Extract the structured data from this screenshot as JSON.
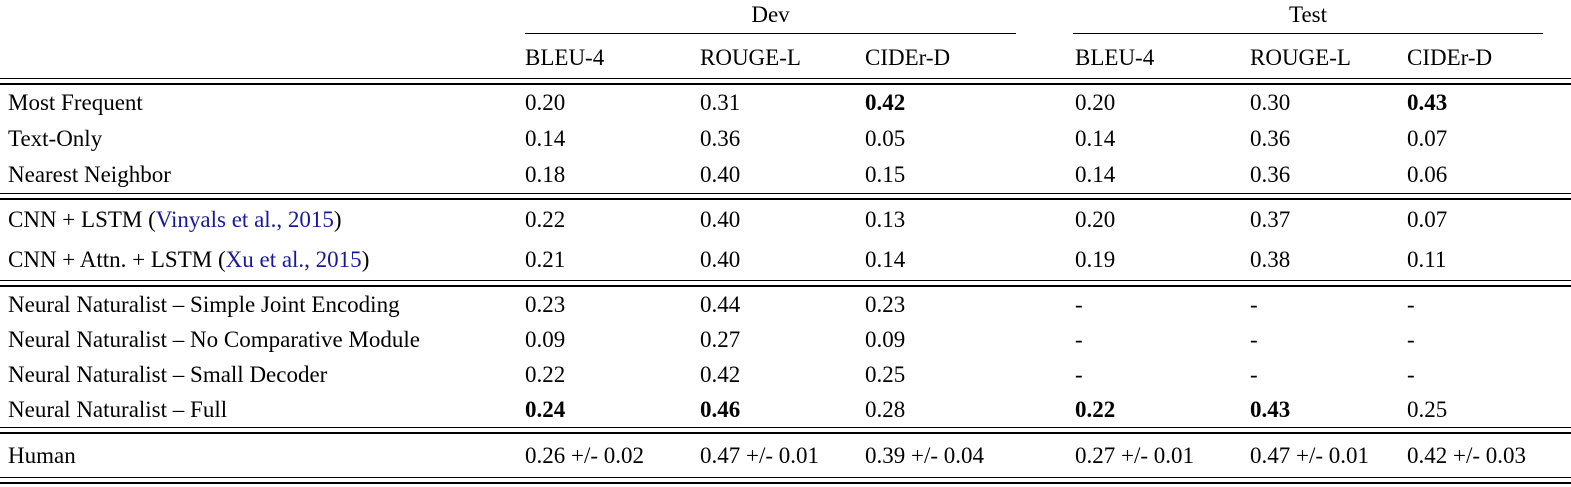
{
  "table": {
    "link_color": "#18189a",
    "groups": [
      {
        "label": "Dev"
      },
      {
        "label": "Test"
      }
    ],
    "metric_headers": [
      "BLEU-4",
      "ROUGE-L",
      "CIDEr-D",
      "BLEU-4",
      "ROUGE-L",
      "CIDEr-D"
    ],
    "sections": [
      {
        "name": "baselines",
        "rows": [
          {
            "label_parts": [
              {
                "text": "Most Frequent",
                "link": false
              }
            ],
            "values": [
              {
                "text": "0.20",
                "bold": false
              },
              {
                "text": "0.31",
                "bold": false
              },
              {
                "text": "0.42",
                "bold": true
              },
              {
                "text": "0.20",
                "bold": false
              },
              {
                "text": "0.30",
                "bold": false
              },
              {
                "text": "0.43",
                "bold": true
              }
            ]
          },
          {
            "label_parts": [
              {
                "text": "Text-Only",
                "link": false
              }
            ],
            "values": [
              {
                "text": "0.14",
                "bold": false
              },
              {
                "text": "0.36",
                "bold": false
              },
              {
                "text": "0.05",
                "bold": false
              },
              {
                "text": "0.14",
                "bold": false
              },
              {
                "text": "0.36",
                "bold": false
              },
              {
                "text": "0.07",
                "bold": false
              }
            ]
          },
          {
            "label_parts": [
              {
                "text": "Nearest Neighbor",
                "link": false
              }
            ],
            "values": [
              {
                "text": "0.18",
                "bold": false
              },
              {
                "text": "0.40",
                "bold": false
              },
              {
                "text": "0.15",
                "bold": false
              },
              {
                "text": "0.14",
                "bold": false
              },
              {
                "text": "0.36",
                "bold": false
              },
              {
                "text": "0.06",
                "bold": false
              }
            ]
          }
        ]
      },
      {
        "name": "prior-models",
        "rows": [
          {
            "label_parts": [
              {
                "text": "CNN + LSTM (",
                "link": false
              },
              {
                "text": "Vinyals et al., 2015",
                "link": true
              },
              {
                "text": ")",
                "link": false
              }
            ],
            "values": [
              {
                "text": "0.22",
                "bold": false
              },
              {
                "text": "0.40",
                "bold": false
              },
              {
                "text": "0.13",
                "bold": false
              },
              {
                "text": "0.20",
                "bold": false
              },
              {
                "text": "0.37",
                "bold": false
              },
              {
                "text": "0.07",
                "bold": false
              }
            ]
          },
          {
            "label_parts": [
              {
                "text": "CNN + Attn. + LSTM (",
                "link": false
              },
              {
                "text": "Xu et al., 2015",
                "link": true
              },
              {
                "text": ")",
                "link": false
              }
            ],
            "values": [
              {
                "text": "0.21",
                "bold": false
              },
              {
                "text": "0.40",
                "bold": false
              },
              {
                "text": "0.14",
                "bold": false
              },
              {
                "text": "0.19",
                "bold": false
              },
              {
                "text": "0.38",
                "bold": false
              },
              {
                "text": "0.11",
                "bold": false
              }
            ]
          }
        ]
      },
      {
        "name": "neural-naturalist",
        "rows": [
          {
            "label_parts": [
              {
                "text": "Neural Naturalist – Simple Joint Encoding",
                "link": false
              }
            ],
            "values": [
              {
                "text": "0.23",
                "bold": false
              },
              {
                "text": "0.44",
                "bold": false
              },
              {
                "text": "0.23",
                "bold": false
              },
              {
                "text": "-",
                "bold": false
              },
              {
                "text": "-",
                "bold": false
              },
              {
                "text": "-",
                "bold": false
              }
            ]
          },
          {
            "label_parts": [
              {
                "text": "Neural Naturalist – No Comparative Module",
                "link": false
              }
            ],
            "values": [
              {
                "text": "0.09",
                "bold": false
              },
              {
                "text": "0.27",
                "bold": false
              },
              {
                "text": "0.09",
                "bold": false
              },
              {
                "text": "-",
                "bold": false
              },
              {
                "text": "-",
                "bold": false
              },
              {
                "text": "-",
                "bold": false
              }
            ]
          },
          {
            "label_parts": [
              {
                "text": "Neural Naturalist – Small Decoder",
                "link": false
              }
            ],
            "values": [
              {
                "text": "0.22",
                "bold": false
              },
              {
                "text": "0.42",
                "bold": false
              },
              {
                "text": "0.25",
                "bold": false
              },
              {
                "text": "-",
                "bold": false
              },
              {
                "text": "-",
                "bold": false
              },
              {
                "text": "-",
                "bold": false
              }
            ]
          },
          {
            "label_parts": [
              {
                "text": "Neural Naturalist – Full",
                "link": false
              }
            ],
            "values": [
              {
                "text": "0.24",
                "bold": true
              },
              {
                "text": "0.46",
                "bold": true
              },
              {
                "text": "0.28",
                "bold": false
              },
              {
                "text": "0.22",
                "bold": true
              },
              {
                "text": "0.43",
                "bold": true
              },
              {
                "text": "0.25",
                "bold": false
              }
            ]
          }
        ]
      },
      {
        "name": "human",
        "rows": [
          {
            "label_parts": [
              {
                "text": "Human",
                "link": false
              }
            ],
            "values": [
              {
                "text": "0.26 +/- 0.02",
                "bold": false
              },
              {
                "text": "0.47 +/- 0.01",
                "bold": false
              },
              {
                "text": "0.39 +/- 0.04",
                "bold": false
              },
              {
                "text": "0.27 +/- 0.01",
                "bold": false
              },
              {
                "text": "0.47 +/- 0.01",
                "bold": false
              },
              {
                "text": "0.42 +/- 0.03",
                "bold": false
              }
            ]
          }
        ]
      }
    ]
  }
}
